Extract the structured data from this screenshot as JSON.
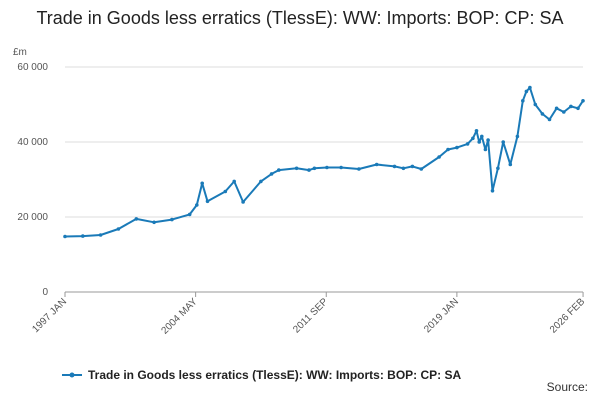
{
  "chart_data": {
    "type": "line",
    "title": "Trade in Goods less erratics (TlessE): WW: Imports: BOP: CP: SA",
    "unit_label": "£m",
    "xlabel": "",
    "ylabel": "",
    "ylim": [
      0,
      60000
    ],
    "yticks": [
      0,
      20000,
      40000,
      60000
    ],
    "ytick_labels": [
      "0",
      "20 000",
      "40 000",
      "60 000"
    ],
    "xticks": [
      "1997 JAN",
      "2004 MAY",
      "2011 SEP",
      "2019 JAN",
      "2026 FEB"
    ],
    "grid": "horizontal",
    "legend_position": "bottom",
    "color": "#1a7ab8",
    "series": [
      {
        "name": "Trade in Goods less erratics (TlessE): WW: Imports: BOP: CP: SA",
        "x": [
          1997.0,
          1998.0,
          1999.0,
          2000.0,
          2001.0,
          2002.0,
          2003.0,
          2004.0,
          2004.4,
          2004.7,
          2005.0,
          2006.0,
          2006.5,
          2007.0,
          2008.0,
          2008.6,
          2009.0,
          2010.0,
          2010.7,
          2011.0,
          2011.7,
          2012.5,
          2013.5,
          2014.5,
          2015.5,
          2016.0,
          2016.5,
          2017.0,
          2018.0,
          2018.5,
          2019.0,
          2019.6,
          2019.9,
          2020.1,
          2020.25,
          2020.4,
          2020.6,
          2020.75,
          2021.0,
          2021.3,
          2021.6,
          2022.0,
          2022.4,
          2022.7,
          2022.9,
          2023.1,
          2023.4,
          2023.8,
          2024.2,
          2024.6,
          2025.0,
          2025.4,
          2025.8,
          2026.08
        ],
        "values": [
          14800,
          14900,
          15200,
          16800,
          19500,
          18600,
          19300,
          20700,
          23200,
          29000,
          24200,
          26800,
          29500,
          24000,
          29500,
          31500,
          32500,
          33000,
          32500,
          33000,
          33200,
          33200,
          32800,
          34000,
          33500,
          33000,
          33500,
          32800,
          36000,
          38000,
          38500,
          39500,
          41000,
          43000,
          40000,
          41500,
          38000,
          40500,
          27000,
          33000,
          40000,
          34000,
          41500,
          51000,
          53500,
          54500,
          50000,
          47500,
          46000,
          49000,
          48000,
          49500,
          49000,
          51000
        ]
      }
    ]
  },
  "source_label": "Source:"
}
